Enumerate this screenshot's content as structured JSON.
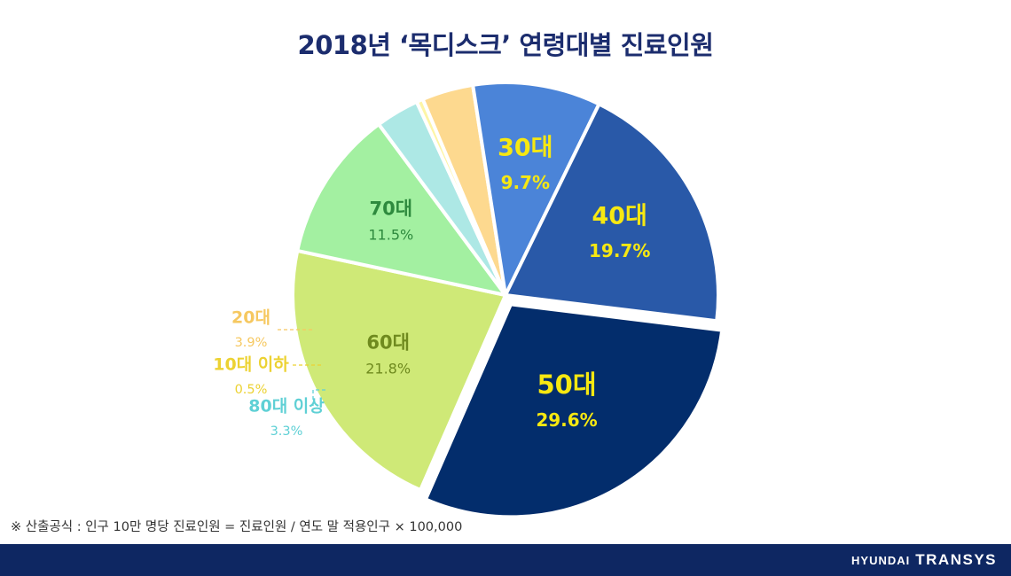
{
  "chart_data": {
    "type": "pie",
    "title": "2018년 ‘목디스크’ 연령대별 진료인원",
    "slices": [
      {
        "label": "50대",
        "value_text": "29.6%",
        "value": 29.6,
        "color": "#032d6c",
        "label_color": "#f7e811",
        "pct_color": "#f7e811"
      },
      {
        "label": "60대",
        "value_text": "21.8%",
        "value": 21.8,
        "color": "#cfe977",
        "label_color": "#6f8a1e",
        "pct_color": "#6f8a1e"
      },
      {
        "label": "70대",
        "value_text": "11.5%",
        "value": 11.5,
        "color": "#a3f0a1",
        "label_color": "#2e8a3e",
        "pct_color": "#2e8a3e"
      },
      {
        "label": "80대 이상",
        "value_text": "3.3%",
        "value": 3.3,
        "color": "#ade8e5",
        "label_color": "#5fd0d5",
        "pct_color": "#5fd0d5"
      },
      {
        "label": "10대 이하",
        "value_text": "0.5%",
        "value": 0.5,
        "color": "#fdf5a6",
        "label_color": "#ecd232",
        "pct_color": "#ecd232"
      },
      {
        "label": "20대",
        "value_text": "3.9%",
        "value": 3.9,
        "color": "#fdd98f",
        "label_color": "#f6c860",
        "pct_color": "#f6c860"
      },
      {
        "label": "30대",
        "value_text": "9.7%",
        "value": 9.7,
        "color": "#4b84d8",
        "label_color": "#f7e811",
        "pct_color": "#f7e811"
      },
      {
        "label": "40대",
        "value_text": "19.7%",
        "value": 19.7,
        "color": "#2959a8",
        "label_color": "#f7e811",
        "pct_color": "#f7e811"
      }
    ]
  },
  "footnote": "※ 산출공식 : 인구 10만 명당 진료인원 = 진료인원 / 연도 말 적용인구 × 100,000",
  "brand": {
    "hyundai": "HYUNDAI",
    "transys": "TRANSYS"
  }
}
